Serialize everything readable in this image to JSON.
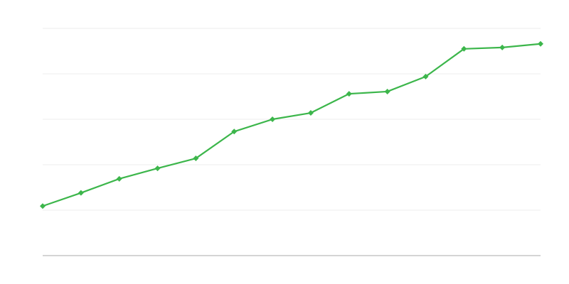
{
  "chart_data": {
    "type": "line",
    "title": "",
    "xlabel": "",
    "ylabel": "",
    "x": [
      1,
      2,
      3,
      4,
      5,
      6,
      7,
      8,
      9,
      10,
      11,
      12,
      13,
      14
    ],
    "series": [
      {
        "values": [
          1.09,
          1.38,
          1.69,
          1.92,
          2.14,
          2.73,
          3.0,
          3.14,
          3.56,
          3.61,
          3.94,
          4.55,
          4.58,
          4.66
        ],
        "color": "#3cb64b",
        "marker": "diamond"
      }
    ],
    "ylim": [
      0,
      5
    ],
    "grid": true,
    "gridline_color": "#eeeeee",
    "axis_color": "#aaaaaa",
    "legend": "none"
  }
}
